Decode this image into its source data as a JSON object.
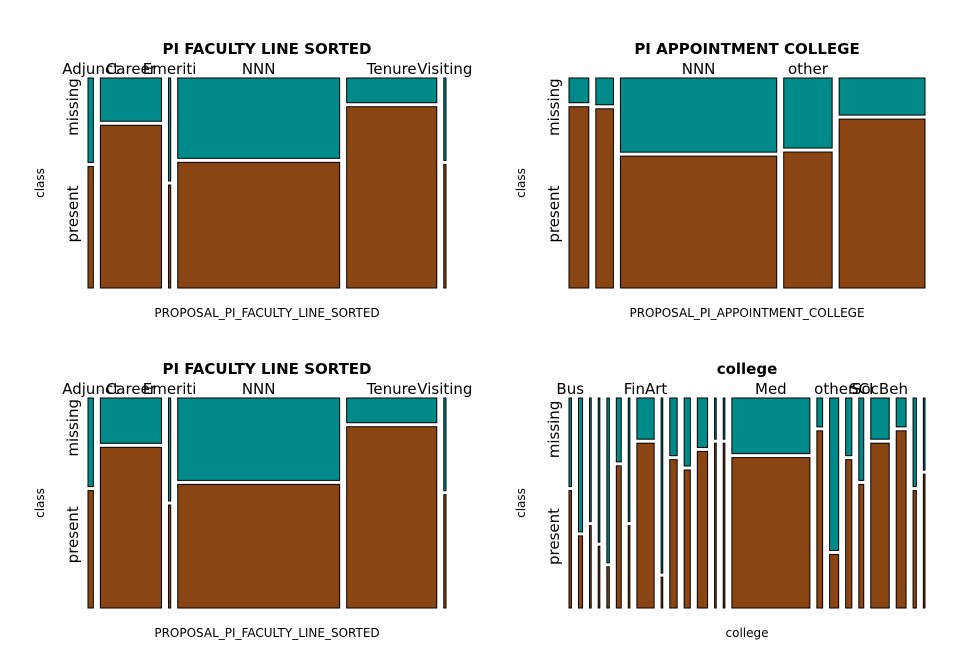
{
  "colors": {
    "missing": "#008B8B",
    "present": "#8B4513",
    "border": "#000000"
  },
  "chart_data": [
    {
      "type": "mosaic",
      "title": "PI FACULTY LINE SORTED",
      "xlabel": "PROPOSAL_PI_FACULTY_LINE_SORTED",
      "ylabel": "class",
      "row_labels": [
        "missing",
        "present"
      ],
      "categories": [
        {
          "label": "Adjunct",
          "share": 0.012,
          "missing": 0.41
        },
        {
          "label": "Career",
          "share": 0.137,
          "missing": 0.21
        },
        {
          "label": "Emeriti",
          "share": 0.005,
          "missing": 0.5
        },
        {
          "label": "NNN",
          "share": 0.363,
          "missing": 0.39
        },
        {
          "label": "Tenure",
          "share": 0.202,
          "missing": 0.12
        },
        {
          "label": "Visiting",
          "share": 0.005,
          "missing": 0.4
        }
      ]
    },
    {
      "type": "mosaic",
      "title": "PI APPOINTMENT COLLEGE",
      "xlabel": "PROPOSAL_PI_APPOINTMENT_COLLEGE",
      "ylabel": "class",
      "row_labels": [
        "missing",
        "present"
      ],
      "categories": [
        {
          "label": "",
          "share": 0.045,
          "missing": 0.12
        },
        {
          "label": "",
          "share": 0.04,
          "missing": 0.13
        },
        {
          "label": "NNN",
          "share": 0.355,
          "missing": 0.36
        },
        {
          "label": "other",
          "share": 0.11,
          "missing": 0.34
        },
        {
          "label": "",
          "share": 0.195,
          "missing": 0.18
        }
      ]
    },
    {
      "type": "mosaic",
      "title": "PI FACULTY LINE SORTED",
      "xlabel": "PROPOSAL_PI_FACULTY_LINE_SORTED",
      "ylabel": "class",
      "row_labels": [
        "missing",
        "present"
      ],
      "categories": [
        {
          "label": "Adjunct",
          "share": 0.012,
          "missing": 0.43
        },
        {
          "label": "Career",
          "share": 0.137,
          "missing": 0.22
        },
        {
          "label": "Emeriti",
          "share": 0.005,
          "missing": 0.5
        },
        {
          "label": "NNN",
          "share": 0.363,
          "missing": 0.4
        },
        {
          "label": "Tenure",
          "share": 0.202,
          "missing": 0.12
        },
        {
          "label": "Visiting",
          "share": 0.005,
          "missing": 0.45
        }
      ]
    },
    {
      "type": "mosaic",
      "title": "college",
      "xlabel": "college",
      "ylabel": "class",
      "row_labels": [
        "missing",
        "present"
      ],
      "categories": [
        {
          "label": "Bus",
          "share": 0.006,
          "missing": 0.43
        },
        {
          "label": "",
          "share": 0.01,
          "missing": 0.65
        },
        {
          "label": "",
          "share": 0.004,
          "missing": 0.6
        },
        {
          "label": "",
          "share": 0.004,
          "missing": 0.7
        },
        {
          "label": "",
          "share": 0.006,
          "missing": 0.8
        },
        {
          "label": "",
          "share": 0.012,
          "missing": 0.31
        },
        {
          "label": "",
          "share": 0.004,
          "missing": 0.6
        },
        {
          "label": "FinArt",
          "share": 0.042,
          "missing": 0.2
        },
        {
          "label": "",
          "share": 0.004,
          "missing": 0.85
        },
        {
          "label": "",
          "share": 0.018,
          "missing": 0.28
        },
        {
          "label": "",
          "share": 0.015,
          "missing": 0.33
        },
        {
          "label": "",
          "share": 0.025,
          "missing": 0.24
        },
        {
          "label": "",
          "share": 0.004,
          "missing": 0.2
        },
        {
          "label": "",
          "share": 0.004,
          "missing": 0.2
        },
        {
          "label": "Med",
          "share": 0.19,
          "missing": 0.27
        },
        {
          "label": "",
          "share": 0.014,
          "missing": 0.14
        },
        {
          "label": "other",
          "share": 0.022,
          "missing": 0.74
        },
        {
          "label": "",
          "share": 0.015,
          "missing": 0.28
        },
        {
          "label": "SCI",
          "share": 0.012,
          "missing": 0.4
        },
        {
          "label": "SocBeh",
          "share": 0.045,
          "missing": 0.2
        },
        {
          "label": "",
          "share": 0.024,
          "missing": 0.14
        },
        {
          "label": "",
          "share": 0.008,
          "missing": 0.43
        },
        {
          "label": "",
          "share": 0.004,
          "missing": 0.35
        }
      ]
    }
  ]
}
